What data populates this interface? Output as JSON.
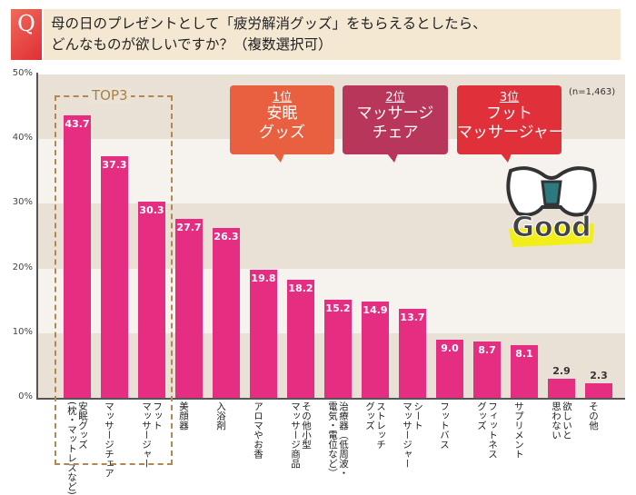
{
  "header": {
    "q_mark": "Q",
    "question_line1": "母の日のプレゼントとして「疲労解消グッズ」をもらえるとしたら、",
    "question_line2": "どんなものが欲しいですか？（複数選択可）"
  },
  "sample": "(n=1,463)",
  "top3_label": "TOP3",
  "callouts": [
    {
      "rank": "1位",
      "name": "安眠\nグッズ",
      "color": "#e8603f"
    },
    {
      "rank": "2位",
      "name": "マッサージ\nチェア",
      "color": "#b8365a"
    },
    {
      "rank": "3位",
      "name": "フット\nマッサージャー",
      "color": "#e0303a"
    }
  ],
  "logo_text": "Good",
  "colors": {
    "bar": "#e52d82",
    "band_dark": "#e9e1d5",
    "band_light": "#f6f3ee"
  },
  "chart_data": {
    "type": "bar",
    "ylim": [
      0,
      50
    ],
    "yticks": [
      "0%",
      "10%",
      "20%",
      "30%",
      "40%",
      "50%"
    ],
    "categories": [
      "安眠グッズ\n(枕・マットレスなど)",
      "マッサージチェア",
      "フット\nマッサージャー",
      "美顔器",
      "入浴剤",
      "アロマやお香",
      "その他小型\nマッサージ商品",
      "治療器（低周波・\n電気・電位など）",
      "ストレッチ\nグッズ",
      "シート\nマッサージャー",
      "フットバス",
      "フィットネス\nグッズ",
      "サプリメント",
      "欲しいと\n思わない",
      "その他"
    ],
    "values": [
      43.7,
      37.3,
      30.3,
      27.7,
      26.3,
      19.8,
      18.2,
      15.2,
      14.9,
      13.7,
      9.0,
      8.7,
      8.1,
      2.9,
      2.3
    ],
    "value_labels": [
      "43.7",
      "37.3",
      "30.3",
      "27.7",
      "26.3",
      "19.8",
      "18.2",
      "15.2",
      "14.9",
      "13.7",
      "9.0",
      "8.7",
      "8.1",
      "2.9",
      "2.3"
    ]
  }
}
